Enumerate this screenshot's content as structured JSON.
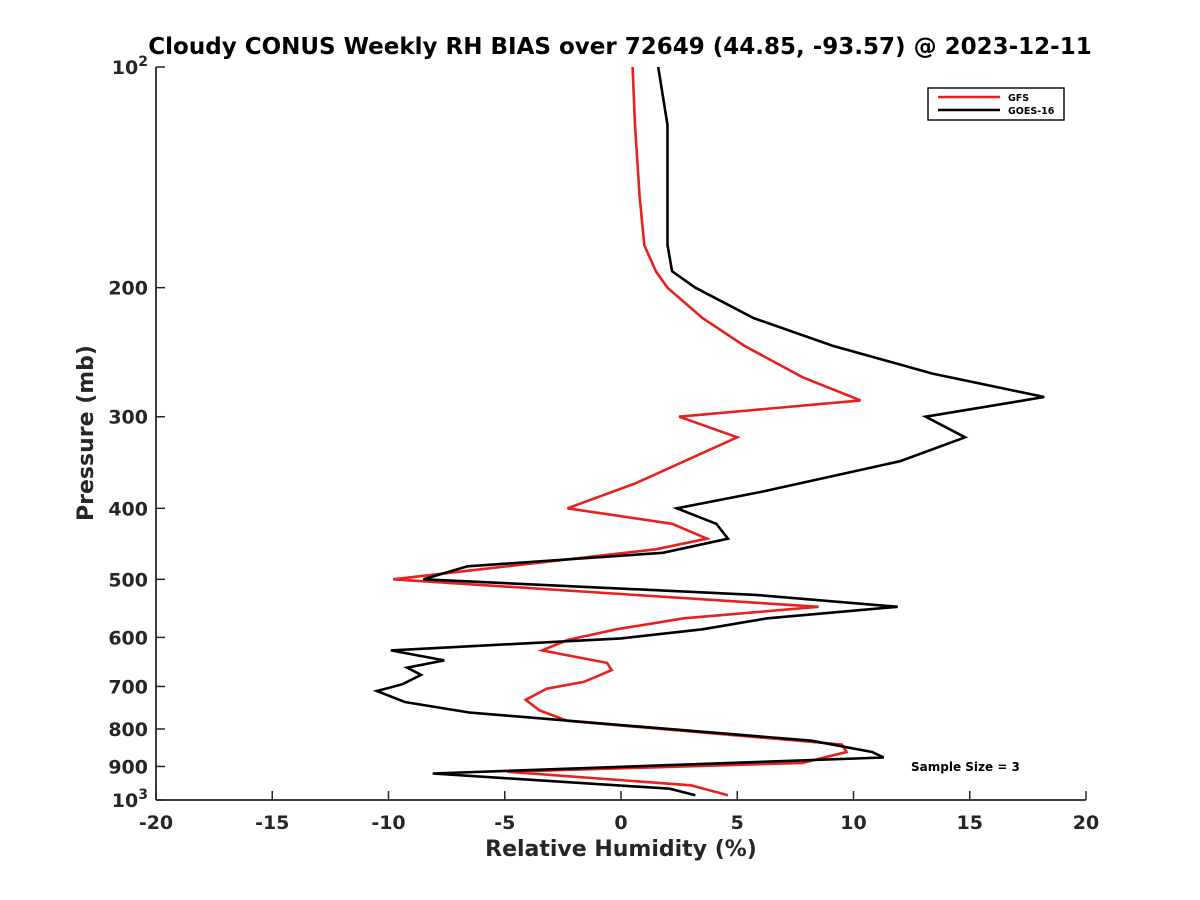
{
  "chart_data": {
    "type": "line",
    "title": "Cloudy CONUS Weekly RH BIAS over 72649 (44.85, -93.57) @ 2023-12-11",
    "xlabel": "Relative Humidity (%)",
    "ylabel": "Pressure (mb)",
    "xlim": [
      -20,
      20
    ],
    "ylim": [
      100,
      1000
    ],
    "y_scale": "log",
    "y_reversed": true,
    "grid": false,
    "legend_position": "top-right",
    "x_ticks": [
      "-20",
      "-15",
      "-10",
      "-5",
      "0",
      "5",
      "10",
      "15",
      "20"
    ],
    "x_tick_values": [
      -20,
      -15,
      -10,
      -5,
      0,
      5,
      10,
      15,
      20
    ],
    "y_ticks": [
      {
        "value": 100,
        "base": "10",
        "exp": "2"
      },
      {
        "value": 200,
        "label": "200"
      },
      {
        "value": 300,
        "label": "300"
      },
      {
        "value": 400,
        "label": "400"
      },
      {
        "value": 500,
        "label": "500"
      },
      {
        "value": 600,
        "label": "600"
      },
      {
        "value": 700,
        "label": "700"
      },
      {
        "value": 800,
        "label": "800"
      },
      {
        "value": 900,
        "label": "900"
      },
      {
        "value": 1000,
        "base": "10",
        "exp": "3"
      }
    ],
    "annotation": "Sample Size = 3",
    "series": [
      {
        "name": "GFS",
        "color": "#e8201e",
        "x": [
          0.5,
          0.6,
          0.8,
          1.0,
          1.5,
          2.0,
          3.5,
          5.3,
          7.8,
          10.3,
          2.5,
          5.0,
          0.6,
          -2.3,
          2.2,
          3.7,
          1.5,
          -9.8,
          8.5,
          2.7,
          -0.2,
          -2.3,
          -3.4,
          -0.6,
          -0.4,
          -1.6,
          -3.2,
          -4.1,
          -3.5,
          -2.3,
          9.5,
          9.7,
          7.8,
          -4.9,
          3.0,
          4.6
        ],
        "y": [
          100,
          120,
          150,
          175,
          190,
          200,
          220,
          240,
          265,
          285,
          300,
          320,
          370,
          400,
          420,
          440,
          455,
          500,
          545,
          565,
          585,
          605,
          625,
          650,
          665,
          690,
          705,
          730,
          755,
          780,
          840,
          860,
          890,
          915,
          955,
          985
        ]
      },
      {
        "name": "GOES-16",
        "color": "#000000",
        "x": [
          1.6,
          2.0,
          2.0,
          2.0,
          2.2,
          3.2,
          5.7,
          9.1,
          13.4,
          18.2,
          13.1,
          14.8,
          12.0,
          6.0,
          2.4,
          4.1,
          4.6,
          1.8,
          -6.6,
          -8.5,
          5.8,
          11.9,
          6.3,
          3.5,
          0.0,
          -9.9,
          -7.6,
          -9.2,
          -8.6,
          -9.4,
          -10.5,
          -9.3,
          -6.5,
          8.2,
          10.8,
          11.3,
          -8.1,
          2.1,
          3.2
        ],
        "y": [
          100,
          120,
          150,
          175,
          190,
          200,
          220,
          240,
          262,
          282,
          300,
          320,
          345,
          380,
          400,
          420,
          440,
          460,
          480,
          500,
          525,
          545,
          565,
          585,
          602,
          625,
          645,
          660,
          675,
          695,
          710,
          735,
          760,
          830,
          860,
          875,
          920,
          965,
          985
        ]
      }
    ]
  }
}
